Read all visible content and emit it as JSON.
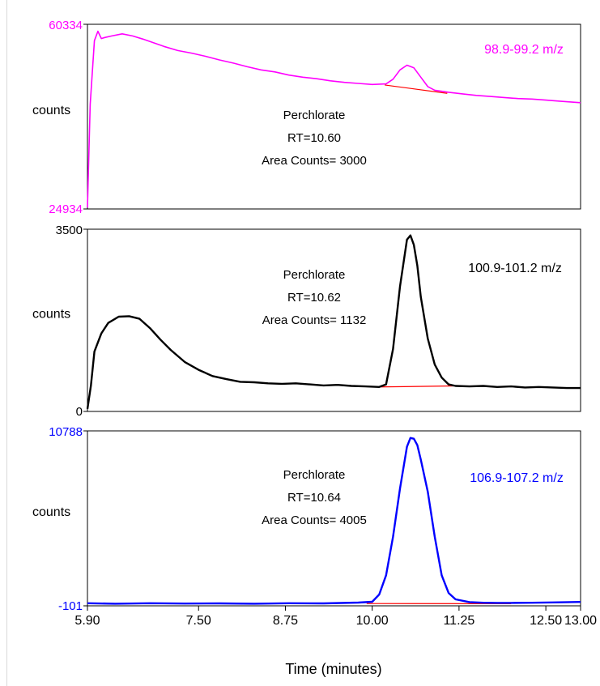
{
  "chart_data": [
    {
      "type": "line",
      "ylabel": "counts",
      "ylim": [
        24934,
        60334
      ],
      "ytick_labels": [
        "60334",
        "24934"
      ],
      "xlim": [
        5.9,
        13.0
      ],
      "mz_label": "98.9-99.2 m/z",
      "annotation": [
        "Perchlorate",
        "RT=10.60",
        "Area Counts= 3000"
      ],
      "colors": {
        "trace": "#ff00ff",
        "ticks": "#ff00ff",
        "baseline": "#ff0000"
      },
      "baseline": {
        "x": [
          10.18,
          11.08
        ],
        "y": [
          48700,
          47100
        ]
      },
      "series": [
        {
          "x": [
            5.9,
            5.94,
            6.0,
            6.05,
            6.1,
            6.15,
            6.25,
            6.4,
            6.55,
            6.7,
            6.85,
            7.0,
            7.2,
            7.4,
            7.6,
            7.8,
            8.0,
            8.2,
            8.4,
            8.6,
            8.8,
            9.0,
            9.2,
            9.4,
            9.6,
            9.8,
            10.0,
            10.2,
            10.3,
            10.4,
            10.5,
            10.6,
            10.7,
            10.8,
            10.9,
            11.0,
            11.1,
            11.3,
            11.5,
            11.7,
            11.9,
            12.1,
            12.3,
            12.5,
            12.7,
            12.9,
            13.0
          ],
          "y": [
            25200,
            45000,
            57200,
            59000,
            57600,
            57800,
            58100,
            58500,
            58100,
            57500,
            56800,
            56100,
            55300,
            54800,
            54200,
            53500,
            52900,
            52200,
            51600,
            51200,
            50600,
            50200,
            49900,
            49500,
            49200,
            49000,
            48800,
            48900,
            49800,
            51600,
            52500,
            52000,
            50200,
            48400,
            47700,
            47500,
            47300,
            47000,
            46700,
            46500,
            46300,
            46100,
            46000,
            45800,
            45600,
            45400,
            45300
          ]
        }
      ]
    },
    {
      "type": "line",
      "ylabel": "counts",
      "ylim": [
        0,
        3500
      ],
      "ytick_labels": [
        "3500",
        "0"
      ],
      "xlim": [
        5.9,
        13.0
      ],
      "mz_label": "100.9-101.2 m/z",
      "annotation": [
        "Perchlorate",
        "RT=10.62",
        "Area Counts= 1132"
      ],
      "colors": {
        "trace": "#000000",
        "ticks": "#000000",
        "baseline": "#ff0000"
      },
      "baseline": {
        "x": [
          10.1,
          11.18
        ],
        "y": [
          470,
          490
        ]
      },
      "series": [
        {
          "x": [
            5.9,
            5.95,
            6.0,
            6.1,
            6.2,
            6.35,
            6.5,
            6.65,
            6.8,
            6.95,
            7.1,
            7.3,
            7.5,
            7.7,
            7.9,
            8.1,
            8.3,
            8.5,
            8.7,
            8.9,
            9.1,
            9.3,
            9.5,
            9.7,
            9.9,
            10.1,
            10.2,
            10.3,
            10.4,
            10.5,
            10.55,
            10.6,
            10.65,
            10.7,
            10.8,
            10.9,
            11.0,
            11.1,
            11.2,
            11.4,
            11.6,
            11.8,
            12.0,
            12.2,
            12.4,
            12.6,
            12.8,
            13.0
          ],
          "y": [
            50,
            500,
            1150,
            1500,
            1700,
            1820,
            1830,
            1780,
            1600,
            1380,
            1180,
            950,
            800,
            680,
            620,
            570,
            560,
            540,
            530,
            540,
            520,
            500,
            510,
            490,
            480,
            470,
            520,
            1200,
            2400,
            3300,
            3380,
            3200,
            2800,
            2200,
            1400,
            900,
            650,
            520,
            490,
            480,
            490,
            470,
            480,
            460,
            470,
            460,
            450,
            450
          ]
        }
      ]
    },
    {
      "type": "line",
      "ylabel": "counts",
      "ylim": [
        -101,
        10788
      ],
      "ytick_labels": [
        "10788",
        "-101"
      ],
      "xlim": [
        5.9,
        13.0
      ],
      "xticks": [
        5.9,
        7.5,
        8.75,
        10.0,
        11.25,
        12.5,
        13.0
      ],
      "xtick_labels": [
        "5.90",
        "7.50",
        "8.75",
        "10.00",
        "11.25",
        "12.50",
        "13.00"
      ],
      "xlabel": "Time (minutes)",
      "mz_label": "106.9-107.2 m/z",
      "annotation": [
        "Perchlorate",
        "RT=10.64",
        "Area Counts= 4005"
      ],
      "colors": {
        "trace": "#0000ff",
        "ticks": "#0000ff",
        "baseline": "#ff0000"
      },
      "baseline": {
        "x": [
          9.92,
          12.0
        ],
        "y": [
          40,
          30
        ]
      },
      "series": [
        {
          "x": [
            5.9,
            6.3,
            6.8,
            7.3,
            7.8,
            8.3,
            8.8,
            9.3,
            9.8,
            10.0,
            10.1,
            10.2,
            10.3,
            10.4,
            10.5,
            10.55,
            10.6,
            10.65,
            10.7,
            10.8,
            10.9,
            11.0,
            11.1,
            11.2,
            11.4,
            11.6,
            11.8,
            12.0,
            12.3,
            12.6,
            13.0
          ],
          "y": [
            60,
            30,
            60,
            40,
            50,
            30,
            60,
            50,
            100,
            150,
            600,
            1800,
            4200,
            7200,
            9800,
            10350,
            10300,
            9900,
            9000,
            7000,
            4200,
            1800,
            700,
            300,
            130,
            90,
            80,
            80,
            90,
            110,
            140
          ]
        }
      ]
    }
  ]
}
